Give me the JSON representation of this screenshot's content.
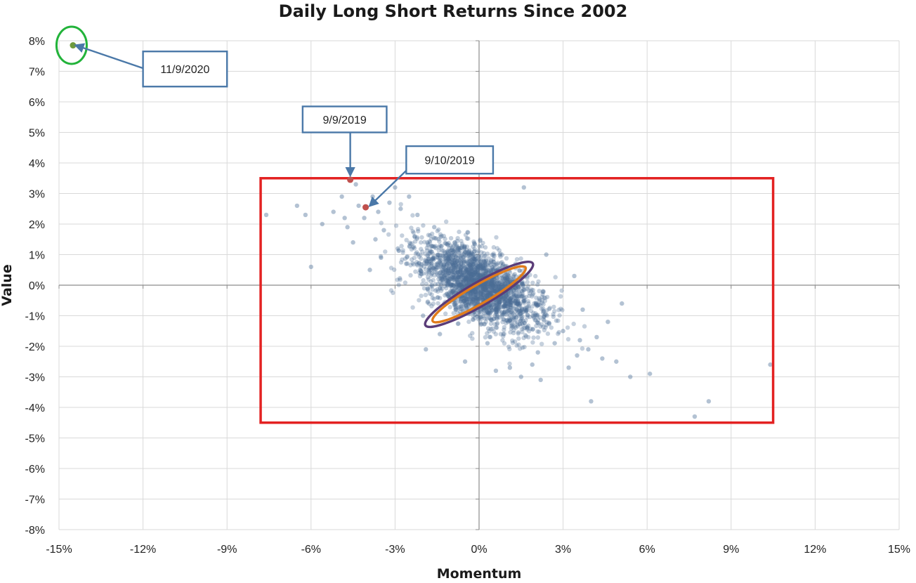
{
  "chart_data": {
    "type": "scatter",
    "title": "Daily Long Short Returns Since 2002",
    "xlabel": "Momentum",
    "ylabel": "Value",
    "xlim": [
      -15,
      15
    ],
    "ylim": [
      -8,
      8
    ],
    "x_ticks": [
      -15,
      -12,
      -9,
      -6,
      -3,
      0,
      3,
      6,
      9,
      12,
      15
    ],
    "y_ticks": [
      8,
      7,
      6,
      5,
      4,
      3,
      2,
      1,
      0,
      -1,
      -2,
      -3,
      -4,
      -5,
      -6,
      -7,
      -8
    ],
    "x_tick_labels": [
      "-15%",
      "-12%",
      "-9%",
      "-6%",
      "-3%",
      "0%",
      "3%",
      "6%",
      "9%",
      "12%",
      "15%"
    ],
    "y_tick_labels": [
      "8%",
      "7%",
      "6%",
      "5%",
      "4%",
      "3%",
      "2%",
      "1%",
      "0%",
      "-1%",
      "-2%",
      "-3%",
      "-4%",
      "-5%",
      "-6%",
      "-7%",
      "-8%"
    ],
    "grid": true,
    "colors": {
      "points": "#4a6e96",
      "highlight_2019": "#c0504d",
      "highlight_2020": "#6e9a3c",
      "ellipse_outer": "#5a3c78",
      "ellipse_inner": "#e07b1a",
      "region_box": "#e32222",
      "marker_circle": "#22b33a",
      "callout": "#4a78a8"
    },
    "cluster": {
      "center": [
        0,
        0
      ],
      "sd_x": 1.1,
      "sd_y": 0.75,
      "corr": -0.6,
      "count": 2300
    },
    "outliers": [
      [
        -7.6,
        2.3
      ],
      [
        -6.5,
        2.6
      ],
      [
        -6.2,
        2.3
      ],
      [
        -6.0,
        0.6
      ],
      [
        -5.6,
        2.0
      ],
      [
        -5.2,
        2.4
      ],
      [
        -4.9,
        2.9
      ],
      [
        -4.8,
        2.2
      ],
      [
        -4.7,
        1.9
      ],
      [
        -4.5,
        1.4
      ],
      [
        -4.4,
        3.3
      ],
      [
        -4.3,
        2.6
      ],
      [
        -4.1,
        2.2
      ],
      [
        -3.9,
        0.5
      ],
      [
        -3.8,
        2.9
      ],
      [
        -3.7,
        1.5
      ],
      [
        -3.6,
        2.4
      ],
      [
        -3.5,
        0.9
      ],
      [
        -3.4,
        1.8
      ],
      [
        -3.2,
        2.7
      ],
      [
        -3.0,
        3.2
      ],
      [
        -2.9,
        1.2
      ],
      [
        -2.8,
        2.5
      ],
      [
        -2.6,
        0.7
      ],
      [
        -2.5,
        2.9
      ],
      [
        -2.3,
        1.6
      ],
      [
        -2.2,
        2.3
      ],
      [
        -1.9,
        -2.1
      ],
      [
        -1.6,
        1.9
      ],
      [
        -1.4,
        -1.6
      ],
      [
        -0.5,
        -2.5
      ],
      [
        0.3,
        -1.9
      ],
      [
        0.6,
        -2.8
      ],
      [
        1.1,
        -2.7
      ],
      [
        1.5,
        -3.0
      ],
      [
        1.6,
        3.2
      ],
      [
        1.9,
        -2.6
      ],
      [
        2.1,
        -2.2
      ],
      [
        2.4,
        1.0
      ],
      [
        2.7,
        -1.9
      ],
      [
        3.0,
        -1.5
      ],
      [
        3.2,
        -2.7
      ],
      [
        3.4,
        0.3
      ],
      [
        3.5,
        -2.3
      ],
      [
        3.6,
        -1.8
      ],
      [
        3.7,
        -0.8
      ],
      [
        3.9,
        -2.1
      ],
      [
        4.0,
        -3.8
      ],
      [
        4.2,
        -1.7
      ],
      [
        4.4,
        -2.4
      ],
      [
        4.6,
        -1.2
      ],
      [
        4.9,
        -2.5
      ],
      [
        5.1,
        -0.6
      ],
      [
        5.4,
        -3.0
      ],
      [
        6.1,
        -2.9
      ],
      [
        7.7,
        -4.3
      ],
      [
        8.2,
        -3.8
      ],
      [
        10.4,
        -2.6
      ],
      [
        2.2,
        -3.1
      ],
      [
        -2.0,
        -1.0
      ]
    ],
    "highlights": [
      {
        "label": "9/9/2019",
        "x": -4.6,
        "y": 3.45
      },
      {
        "label": "9/10/2019",
        "x": -4.05,
        "y": 2.55
      },
      {
        "label": "11/9/2020",
        "x": -14.5,
        "y": 7.85
      }
    ],
    "ellipses": [
      {
        "name": "outer",
        "center": [
          0,
          -0.3
        ],
        "rx": 2.95,
        "ry": 0.82,
        "angle": -30
      },
      {
        "name": "inner",
        "center": [
          0,
          -0.3
        ],
        "rx": 2.55,
        "ry": 0.66,
        "angle": -30
      }
    ],
    "region_box": {
      "x": [
        -7.8,
        10.5
      ],
      "y": [
        -4.5,
        3.5
      ]
    },
    "callouts": [
      {
        "label": "11/9/2020",
        "box_x": [
          -12.0,
          -9.0
        ],
        "box_y": [
          6.5,
          7.65
        ],
        "arrow_from": [
          -12.0,
          7.1
        ],
        "arrow_to": [
          -14.4,
          7.85
        ]
      },
      {
        "label": "9/9/2019",
        "box_x": [
          -6.3,
          -3.3
        ],
        "box_y": [
          5.0,
          5.85
        ],
        "arrow_from": [
          -4.6,
          5.0
        ],
        "arrow_to": [
          -4.6,
          3.6
        ]
      },
      {
        "label": "9/10/2019",
        "box_x": [
          -2.6,
          0.5
        ],
        "box_y": [
          3.65,
          4.55
        ],
        "arrow_from": [
          -2.6,
          3.75
        ],
        "arrow_to": [
          -3.9,
          2.6
        ]
      }
    ],
    "highlight_circle": {
      "center": [
        -14.55,
        7.85
      ],
      "radius_x": 0.72,
      "radius_y": 0.78
    }
  }
}
